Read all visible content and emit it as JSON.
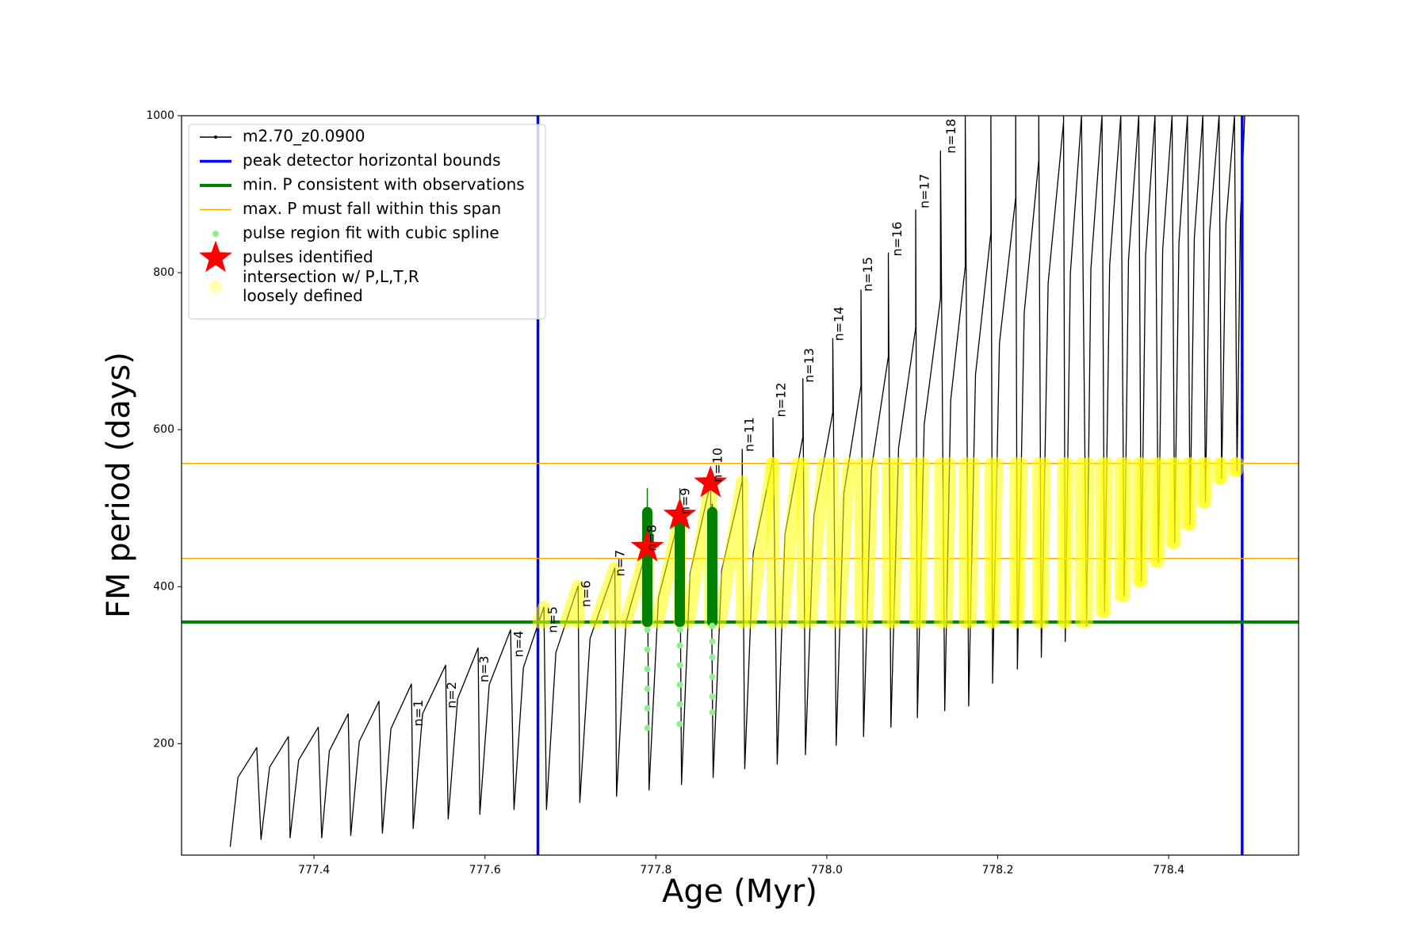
{
  "chart_data": {
    "type": "line",
    "x_label": "Age (Myr)",
    "y_label": "FM period (days)",
    "xlim": [
      777.245,
      778.552
    ],
    "ylim": [
      58,
      1000
    ],
    "xticks": [
      777.4,
      777.6,
      777.8,
      {
        "value": 778.0,
        "label": "778.0"
      },
      778.2,
      778.4
    ],
    "yticks": [
      200,
      400,
      600,
      800,
      1000
    ],
    "legend": "upper left",
    "series": [
      {
        "name": "m2.70_z0.0900",
        "color": "#000000",
        "kind": "line",
        "x": [
          777.302,
          777.311,
          777.333,
          777.338,
          777.348,
          777.37,
          777.372,
          777.382,
          777.405,
          777.409,
          777.418,
          777.44,
          777.443,
          777.453,
          777.476,
          777.48,
          777.49,
          777.514,
          777.516,
          777.527,
          777.554,
          777.557,
          777.568,
          777.592,
          777.594,
          777.605,
          777.63,
          777.634,
          777.645,
          777.669,
          777.672,
          777.683,
          777.709,
          777.711,
          777.723,
          777.752,
          777.754,
          777.765,
          777.79,
          777.792,
          777.803,
          777.828,
          777.83,
          777.84,
          777.864,
          777.867,
          777.877,
          777.901,
          777.901,
          777.904,
          777.914,
          777.937,
          777.937,
          777.942,
          777.951,
          777.972,
          777.972,
          777.975,
          777.985,
          778.007,
          778.007,
          778.011,
          778.02,
          778.04,
          778.04,
          778.043,
          778.052,
          778.072,
          778.072,
          778.075,
          778.084,
          778.104,
          778.104,
          778.106,
          778.114,
          778.133,
          778.133,
          778.138,
          778.145,
          778.162,
          778.162,
          778.166,
          778.174,
          778.192,
          778.192,
          778.194,
          778.202,
          778.221,
          778.221,
          778.223,
          778.231,
          778.248,
          778.248,
          778.251,
          778.259,
          778.277,
          778.277,
          778.279,
          778.285,
          778.298,
          778.304,
          778.309,
          778.322,
          778.325,
          778.331,
          778.344,
          778.348,
          778.353,
          778.365,
          778.368,
          778.373,
          778.384,
          778.388,
          778.393,
          778.404,
          778.407,
          778.412,
          778.422,
          778.425,
          778.43,
          778.44,
          778.443,
          778.448,
          778.459,
          778.462,
          778.467,
          778.477,
          778.48,
          778.484,
          778.489
        ],
        "values": [
          69,
          157,
          195,
          78,
          170,
          209,
          80,
          179,
          221,
          80,
          191,
          238,
          83,
          203,
          254,
          86,
          219,
          276,
          92,
          238,
          300,
          104,
          257,
          322,
          110,
          275,
          345,
          116,
          297,
          374,
          116,
          316,
          401,
          125,
          334,
          424,
          133,
          355,
          450,
          141,
          386,
          491,
          148,
          417,
          532,
          157,
          421,
          534,
          575,
          168,
          443,
          561,
          615,
          174,
          466,
          591,
          665,
          186,
          491,
          622,
          716,
          198,
          519,
          656,
          778,
          209,
          548,
          693,
          825,
          221,
          577,
          730,
          880,
          233,
          607,
          767,
          955,
          242,
          638,
          808,
          1000,
          248,
          670,
          851,
          1000,
          277,
          710,
          896,
          1000,
          295,
          749,
          943,
          1000,
          310,
          787,
          992,
          1000,
          330,
          799,
          1000,
          350,
          805,
          1000,
          368,
          810,
          1000,
          388,
          816,
          1000,
          407,
          822,
          1000,
          432,
          829,
          1000,
          456,
          837,
          1000,
          479,
          844,
          1000,
          508,
          853,
          1000,
          538,
          862,
          1000,
          548,
          870,
          1000
        ]
      },
      {
        "name": "peak detector horizontal bounds",
        "color": "#0000ff",
        "kind": "vline",
        "values": [
          777.662,
          778.486
        ]
      },
      {
        "name": "min. P consistent with observations",
        "color": "#008000",
        "kind": "hline-bold",
        "values": [
          355
        ]
      },
      {
        "name": "max. P must fall within this span",
        "color": "#ffa500",
        "kind": "hline",
        "values": [
          436,
          557
        ]
      },
      {
        "name": "pulse region fit with cubic spline",
        "color": "#90ee90",
        "kind": "scatter",
        "x": [
          777.79,
          777.79,
          777.79,
          777.79,
          777.79,
          777.79,
          777.828,
          777.828,
          777.828,
          777.828,
          777.828,
          777.828,
          777.866,
          777.866,
          777.866,
          777.866,
          777.866,
          777.866
        ],
        "values": [
          220,
          245,
          270,
          295,
          320,
          345,
          225,
          250,
          275,
          300,
          325,
          345,
          240,
          260,
          285,
          310,
          330,
          350
        ]
      },
      {
        "name": "pulses identified",
        "color": "#ff0000",
        "kind": "star",
        "x": [
          777.79,
          777.828,
          777.864
        ],
        "values": [
          450,
          491,
          532
        ]
      },
      {
        "name": "intersection w/ P,L,T,R\nloosely defined",
        "color": "#ffff00",
        "kind": "band",
        "x": [
          777.663,
          777.669,
          777.669,
          null,
          777.695,
          777.709,
          777.709,
          null,
          777.73,
          777.752,
          777.752,
          null,
          777.765,
          777.79,
          777.79,
          null,
          777.802,
          777.828,
          777.828,
          null,
          777.838,
          777.864,
          777.864,
          null,
          777.875,
          777.901,
          777.901,
          null,
          777.911,
          777.936,
          null,
          777.937,
          777.937,
          null,
          777.948,
          777.966,
          null,
          777.972,
          777.972,
          null,
          777.981,
          777.996,
          null,
          778.007,
          778.007,
          null,
          778.015,
          778.026,
          null,
          778.04,
          778.04,
          null,
          778.047,
          778.053,
          null,
          778.072,
          778.072,
          null,
          778.078,
          778.083,
          null,
          778.104,
          778.104,
          null,
          778.109,
          778.113,
          null,
          778.133,
          778.133,
          null,
          778.14,
          778.144,
          null,
          778.162,
          778.162,
          null,
          778.168,
          778.172,
          null,
          778.192,
          778.192,
          null,
          778.195,
          778.199,
          null,
          778.221,
          778.221,
          null,
          778.224,
          778.228,
          null,
          778.248,
          778.248,
          null,
          778.252,
          778.255,
          null,
          778.277,
          778.277,
          null,
          778.279,
          778.282,
          null,
          778.298,
          778.298,
          null,
          778.304,
          778.306,
          null,
          778.322,
          778.322,
          null,
          778.325,
          778.328,
          null,
          778.344,
          778.344,
          null,
          778.348,
          778.35,
          null,
          778.365,
          778.365,
          null,
          778.368,
          778.37,
          null,
          778.384,
          778.384,
          null,
          778.388,
          778.39,
          null,
          778.404,
          778.404,
          null,
          778.407,
          778.408,
          null,
          778.422,
          778.422,
          null,
          778.425,
          778.426,
          null,
          778.44,
          778.44,
          null,
          778.443,
          778.444,
          null,
          778.459,
          778.459,
          null,
          778.462,
          778.462,
          null,
          778.477,
          778.477,
          null,
          778.48,
          778.481
        ],
        "values": [
          355,
          374,
          355,
          null,
          355,
          401,
          355,
          null,
          355,
          424,
          355,
          null,
          355,
          450,
          355,
          null,
          355,
          491,
          355,
          null,
          355,
          532,
          355,
          null,
          355,
          534,
          355,
          null,
          355,
          557,
          null,
          557,
          355,
          null,
          355,
          557,
          null,
          557,
          355,
          null,
          355,
          557,
          null,
          557,
          355,
          null,
          355,
          557,
          null,
          557,
          355,
          null,
          355,
          557,
          null,
          557,
          355,
          null,
          355,
          557,
          null,
          557,
          355,
          null,
          355,
          557,
          null,
          557,
          355,
          null,
          355,
          557,
          null,
          557,
          355,
          null,
          355,
          557,
          null,
          557,
          355,
          null,
          355,
          557,
          null,
          557,
          355,
          null,
          355,
          557,
          null,
          557,
          355,
          null,
          355,
          557,
          null,
          557,
          355,
          null,
          355,
          557,
          null,
          557,
          355,
          null,
          355,
          557,
          null,
          557,
          368,
          null,
          368,
          557,
          null,
          557,
          388,
          null,
          388,
          557,
          null,
          557,
          407,
          null,
          407,
          557,
          null,
          557,
          432,
          null,
          432,
          557,
          null,
          557,
          456,
          null,
          456,
          557,
          null,
          557,
          479,
          null,
          479,
          557,
          null,
          557,
          508,
          null,
          508,
          557,
          null,
          557,
          538,
          null,
          538,
          557,
          null,
          557,
          548,
          null,
          548,
          557
        ]
      },
      {
        "color": "#008000",
        "kind": "heavy",
        "x": [
          777.79,
          777.79,
          null,
          777.828,
          777.828,
          null,
          777.866,
          777.866
        ],
        "values": [
          355,
          495,
          null,
          355,
          495,
          null,
          355,
          495
        ]
      },
      {
        "color": "#008000",
        "kind": "thin",
        "x": [
          777.79,
          777.79,
          null,
          777.828,
          777.828,
          null,
          777.866,
          777.866
        ],
        "values": [
          495,
          525,
          null,
          495,
          525,
          null,
          495,
          505
        ]
      }
    ],
    "annotations": [
      {
        "text": "n=1",
        "x": 777.523,
        "y": 239
      },
      {
        "text": "n=2",
        "x": 777.562,
        "y": 262
      },
      {
        "text": "n=3",
        "x": 777.6,
        "y": 295
      },
      {
        "text": "n=4",
        "x": 777.64,
        "y": 327
      },
      {
        "text": "n=5",
        "x": 777.68,
        "y": 358
      },
      {
        "text": "n=6",
        "x": 777.719,
        "y": 391
      },
      {
        "text": "n=7",
        "x": 777.759,
        "y": 430
      },
      {
        "text": "n=8",
        "x": 777.796,
        "y": 462
      },
      {
        "text": "n=9",
        "x": 777.835,
        "y": 509
      },
      {
        "text": "n=10",
        "x": 777.873,
        "y": 555
      },
      {
        "text": "n=11",
        "x": 777.91,
        "y": 594
      },
      {
        "text": "n=12",
        "x": 777.947,
        "y": 638
      },
      {
        "text": "n=13",
        "x": 777.98,
        "y": 682
      },
      {
        "text": "n=14",
        "x": 778.015,
        "y": 735
      },
      {
        "text": "n=15",
        "x": 778.049,
        "y": 798
      },
      {
        "text": "n=16",
        "x": 778.083,
        "y": 843
      },
      {
        "text": "n=17",
        "x": 778.115,
        "y": 904
      },
      {
        "text": "n=18",
        "x": 778.146,
        "y": 974
      }
    ]
  }
}
